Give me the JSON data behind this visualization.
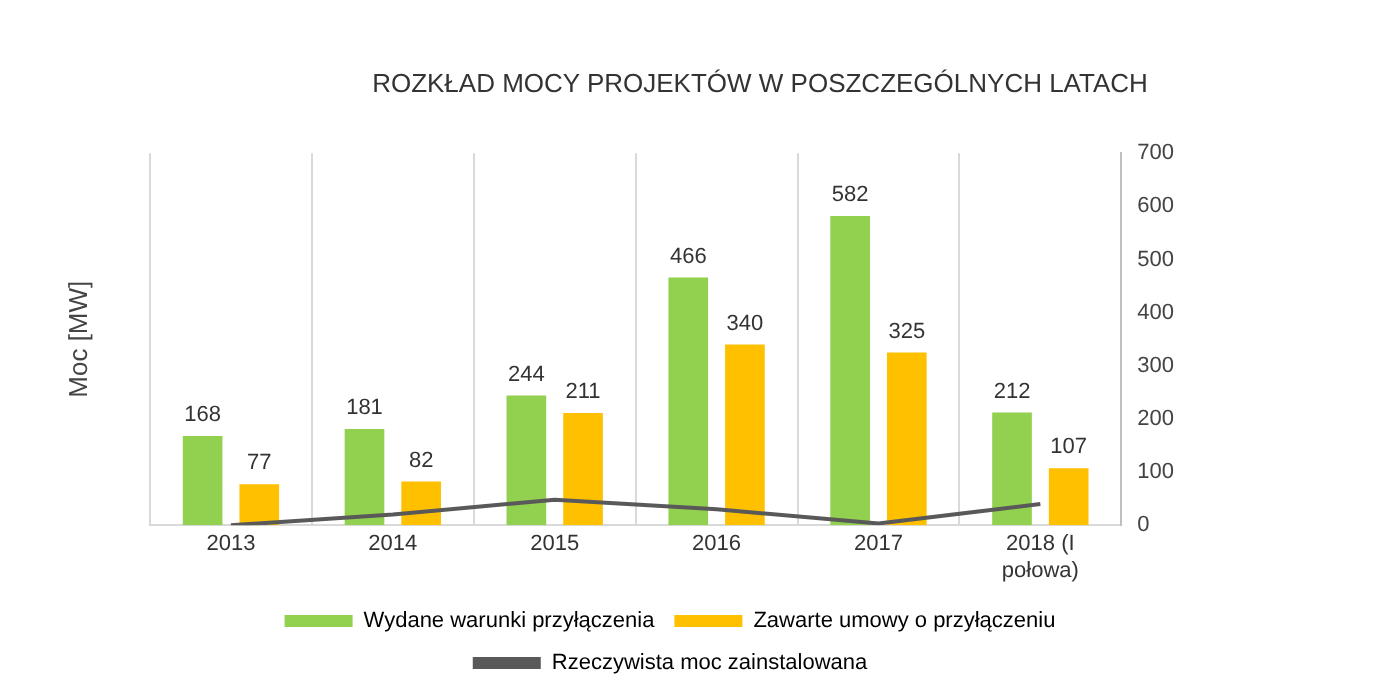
{
  "chart_data": {
    "type": "bar",
    "title": "ROZKŁAD MOCY PROJEKTÓW W POSZCZEGÓLNYCH LATACH",
    "ylabel": "Moc [MW]",
    "categories": [
      "2013",
      "2014",
      "2015",
      "2016",
      "2017",
      "2018 (I połowa)"
    ],
    "series": [
      {
        "name": "Wydane warunki przyłączenia",
        "color": "#92d050",
        "values": [
          168,
          181,
          244,
          466,
          582,
          212
        ],
        "value_labels": [
          "168",
          "181",
          "244",
          "466",
          "582",
          "212"
        ]
      },
      {
        "name": "Zawarte umowy o przyłączeniu",
        "color": "#ffc000",
        "values": [
          77,
          82,
          211,
          340,
          325,
          107
        ],
        "value_labels": [
          "77",
          "82",
          "211",
          "340",
          "325",
          "107"
        ]
      },
      {
        "name": "Rzeczywista moc zainstalowana",
        "type": "line",
        "color": "#595959",
        "values": [
          0,
          20,
          48,
          30,
          3,
          40
        ],
        "marker": "none"
      }
    ],
    "ylim": [
      0,
      700
    ],
    "yticks": [
      0,
      100,
      200,
      300,
      400,
      500,
      600,
      700
    ],
    "grid": "x",
    "legend": "bottom"
  }
}
